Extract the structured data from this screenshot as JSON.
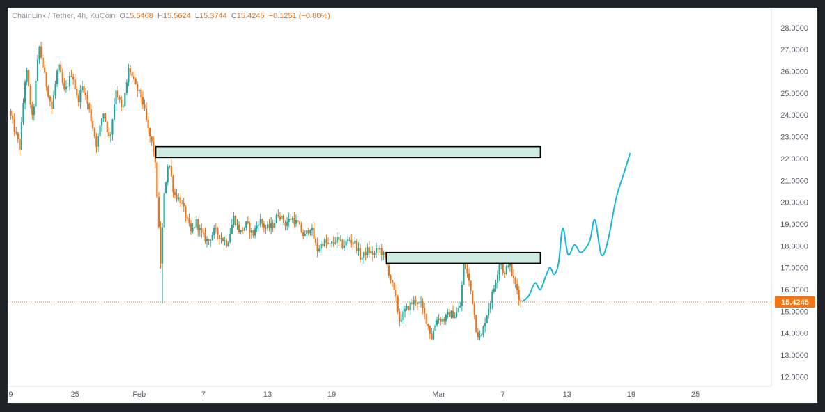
{
  "legend": {
    "symbol": "ChainLink / Tether, 4h, KuCoin",
    "open_key": "O",
    "open": "15.5468",
    "high_key": "H",
    "high": "15.5624",
    "low_key": "L",
    "low": "15.3744",
    "close_key": "C",
    "close": "15.4245",
    "change": "−0.1251 (−0.80%)"
  },
  "colors": {
    "up": "#26a69a",
    "down": "#e8731a",
    "zone_fill": "#cfece3",
    "zone_stroke": "#000000",
    "projection": "#1ab7d8",
    "last_price": "#f5740f"
  },
  "chart_data": {
    "type": "candlestick",
    "symbol": "ChainLink / Tether",
    "interval": "4h",
    "exchange": "KuCoin",
    "ylim": [
      11.7,
      28.5
    ],
    "y_ticks": [
      "28.0000",
      "27.0000",
      "26.0000",
      "25.0000",
      "24.0000",
      "23.0000",
      "22.0000",
      "21.0000",
      "20.0000",
      "19.0000",
      "18.0000",
      "17.0000",
      "16.0000",
      "15.0000",
      "14.0000",
      "13.0000",
      "12.0000"
    ],
    "x_ticks": [
      {
        "label": "9",
        "day": -1
      },
      {
        "label": "25",
        "day": 5
      },
      {
        "label": "Feb",
        "day": 11
      },
      {
        "label": "7",
        "day": 17
      },
      {
        "label": "13",
        "day": 23
      },
      {
        "label": "19",
        "day": 29
      },
      {
        "label": "Mar",
        "day": 39
      },
      {
        "label": "7",
        "day": 45
      },
      {
        "label": "13",
        "day": 51
      },
      {
        "label": "19",
        "day": 57
      },
      {
        "label": "25",
        "day": 63
      }
    ],
    "last_price": 15.4245,
    "last_price_label": "15.4245",
    "zones": [
      {
        "name": "resistance-zone-upper",
        "day_start": 12.55,
        "day_end": 48.5,
        "low": 22.05,
        "high": 22.55
      },
      {
        "name": "resistance-zone-lower",
        "day_start": 34.1,
        "day_end": 48.5,
        "low": 17.2,
        "high": 17.7
      }
    ],
    "price_path": [
      [
        -1.0,
        24.2
      ],
      [
        0.0,
        22.5
      ],
      [
        0.6,
        26.2
      ],
      [
        1.2,
        23.7
      ],
      [
        1.8,
        27.2
      ],
      [
        2.4,
        25.6
      ],
      [
        3.0,
        24.3
      ],
      [
        3.6,
        26.3
      ],
      [
        4.2,
        25.0
      ],
      [
        4.9,
        26.0
      ],
      [
        5.4,
        24.6
      ],
      [
        5.9,
        25.4
      ],
      [
        6.5,
        24.2
      ],
      [
        7.2,
        22.6
      ],
      [
        7.8,
        24.2
      ],
      [
        8.4,
        22.8
      ],
      [
        9.0,
        25.2
      ],
      [
        9.6,
        24.1
      ],
      [
        10.2,
        26.2
      ],
      [
        10.8,
        25.3
      ],
      [
        11.4,
        24.8
      ],
      [
        12.0,
        23.3
      ],
      [
        12.6,
        22.2
      ],
      [
        12.9,
        19.8
      ],
      [
        13.15,
        17.1
      ],
      [
        13.5,
        20.3
      ],
      [
        13.9,
        22.0
      ],
      [
        14.4,
        20.4
      ],
      [
        15.0,
        20.1
      ],
      [
        15.5,
        19.4
      ],
      [
        16.0,
        18.6
      ],
      [
        16.5,
        19.1
      ],
      [
        17.0,
        18.5
      ],
      [
        17.6,
        18.2
      ],
      [
        18.2,
        18.7
      ],
      [
        18.8,
        18.4
      ],
      [
        19.4,
        18.1
      ],
      [
        20.0,
        19.3
      ],
      [
        20.6,
        18.6
      ],
      [
        21.2,
        19.0
      ],
      [
        21.8,
        18.5
      ],
      [
        22.4,
        19.2
      ],
      [
        23.0,
        18.8
      ],
      [
        23.6,
        18.9
      ],
      [
        24.2,
        19.5
      ],
      [
        24.8,
        19.0
      ],
      [
        25.4,
        19.3
      ],
      [
        26.0,
        19.0
      ],
      [
        26.6,
        18.4
      ],
      [
        27.2,
        18.9
      ],
      [
        27.8,
        17.8
      ],
      [
        28.4,
        18.2
      ],
      [
        29.0,
        18.0
      ],
      [
        29.6,
        18.3
      ],
      [
        30.2,
        18.0
      ],
      [
        30.8,
        18.3
      ],
      [
        31.4,
        18.1
      ],
      [
        31.9,
        17.4
      ],
      [
        32.5,
        17.8
      ],
      [
        33.1,
        17.6
      ],
      [
        33.6,
        17.9
      ],
      [
        34.1,
        17.5
      ],
      [
        34.6,
        16.6
      ],
      [
        35.1,
        15.7
      ],
      [
        35.5,
        14.6
      ],
      [
        36.0,
        15.0
      ],
      [
        36.5,
        15.3
      ],
      [
        37.0,
        15.5
      ],
      [
        37.5,
        15.3
      ],
      [
        38.0,
        14.6
      ],
      [
        38.5,
        13.8
      ],
      [
        39.0,
        14.7
      ],
      [
        39.6,
        14.6
      ],
      [
        40.2,
        14.9
      ],
      [
        40.7,
        14.8
      ],
      [
        41.2,
        15.3
      ],
      [
        41.5,
        17.3
      ],
      [
        41.9,
        16.6
      ],
      [
        42.3,
        15.6
      ],
      [
        42.7,
        14.1
      ],
      [
        43.1,
        13.7
      ],
      [
        43.5,
        14.6
      ],
      [
        43.9,
        15.3
      ],
      [
        44.4,
        16.2
      ],
      [
        44.9,
        17.4
      ],
      [
        45.3,
        16.6
      ],
      [
        45.7,
        17.3
      ],
      [
        46.1,
        16.5
      ],
      [
        46.5,
        16.0
      ],
      [
        46.8,
        15.4245
      ]
    ],
    "projection_path": [
      [
        46.8,
        15.45
      ],
      [
        47.4,
        15.7
      ],
      [
        48.0,
        16.3
      ],
      [
        48.5,
        16.0
      ],
      [
        49.0,
        16.6
      ],
      [
        49.4,
        17.0
      ],
      [
        49.8,
        16.7
      ],
      [
        50.2,
        17.2
      ],
      [
        50.6,
        18.8
      ],
      [
        51.1,
        17.6
      ],
      [
        51.7,
        18.05
      ],
      [
        52.3,
        17.7
      ],
      [
        53.1,
        18.2
      ],
      [
        53.6,
        19.2
      ],
      [
        54.2,
        17.6
      ],
      [
        54.8,
        18.2
      ],
      [
        55.6,
        20.2
      ],
      [
        56.3,
        21.3
      ],
      [
        56.9,
        22.25
      ]
    ]
  }
}
